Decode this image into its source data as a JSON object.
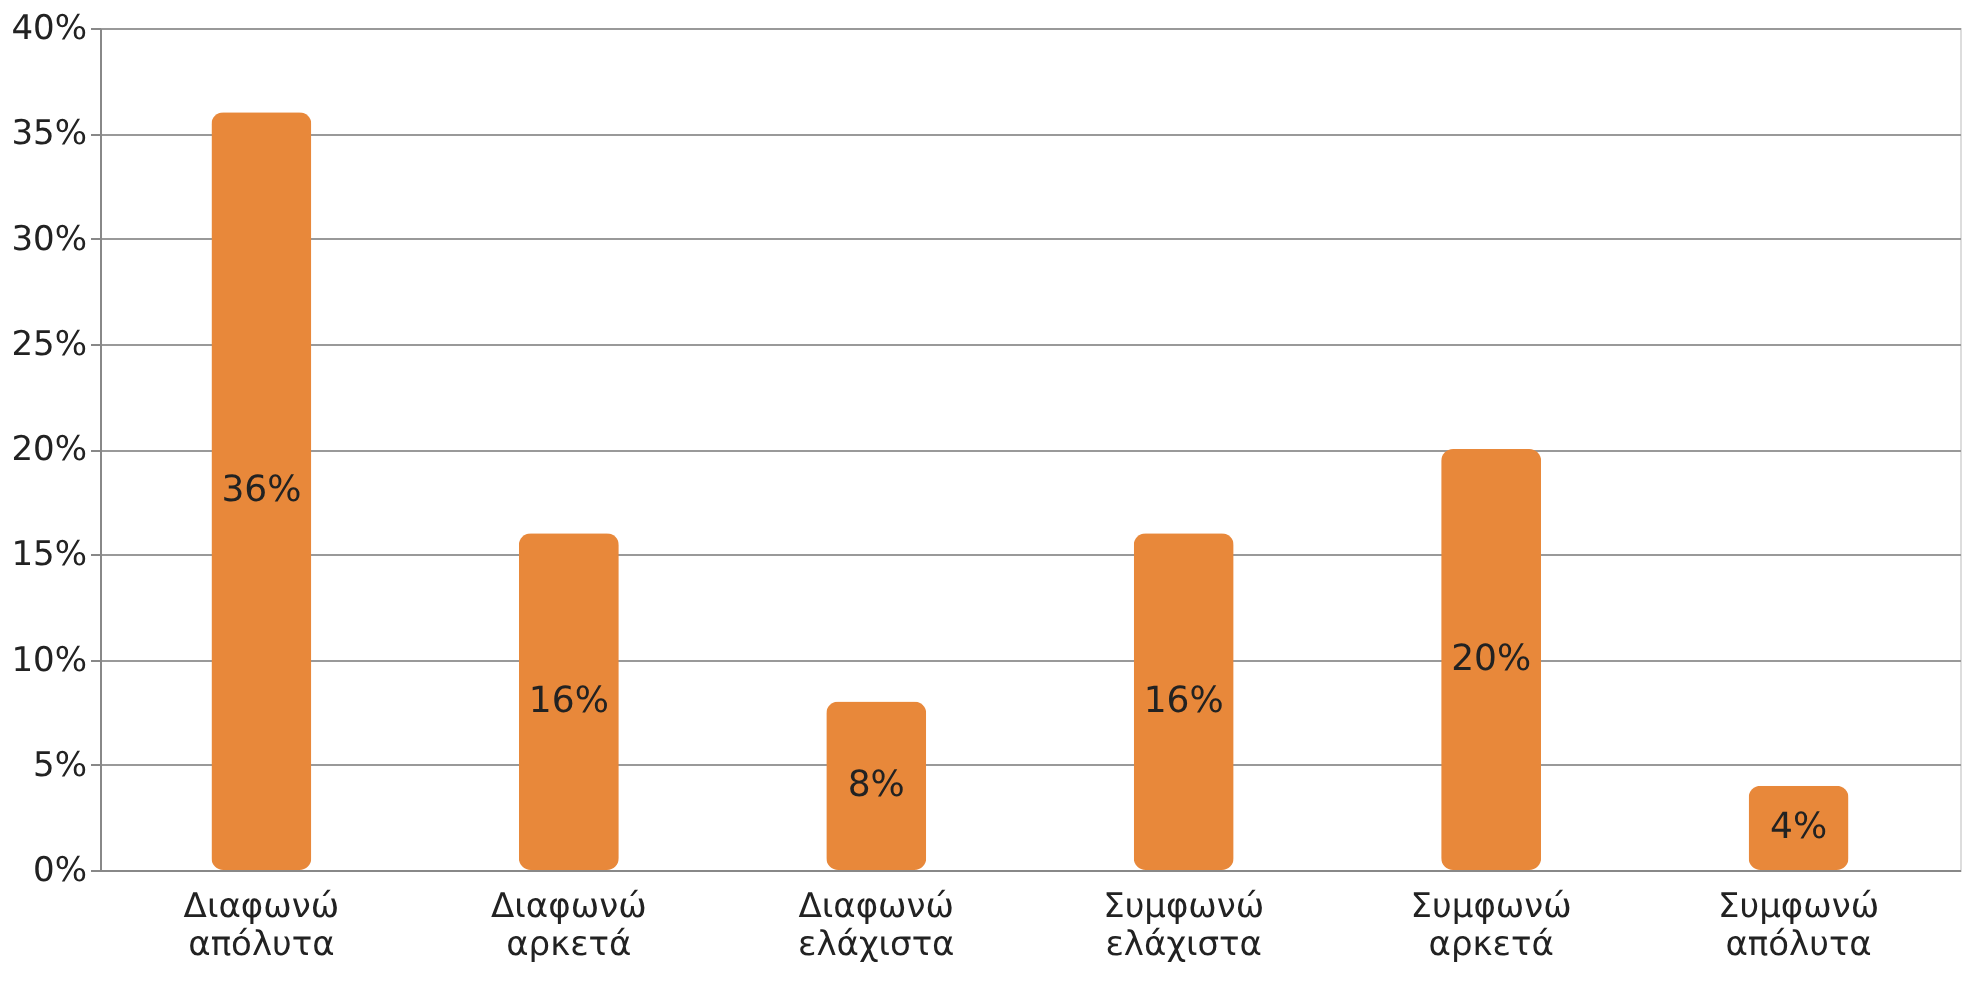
{
  "chart_data": {
    "type": "bar",
    "categories": [
      "Διαφωνώ απόλυτα",
      "Διαφωνώ αρκετά",
      "Διαφωνώ ελάχιστα",
      "Συμφωνώ ελάχιστα",
      "Συμφωνώ αρκετά",
      "Συμφωνώ απόλυτα"
    ],
    "values": [
      36,
      16,
      8,
      16,
      20,
      4
    ],
    "value_labels": [
      "36%",
      "16%",
      "8%",
      "16%",
      "20%",
      "4%"
    ],
    "color": "#e8883a",
    "ylim": [
      0,
      40
    ],
    "yticks": [
      {
        "value": 0,
        "label": "0%"
      },
      {
        "value": 5,
        "label": "5%"
      },
      {
        "value": 10,
        "label": "10%"
      },
      {
        "value": 15,
        "label": "15%"
      },
      {
        "value": 20,
        "label": "20%"
      },
      {
        "value": 25,
        "label": "25%"
      },
      {
        "value": 30,
        "label": "30%"
      },
      {
        "value": 35,
        "label": "35%"
      },
      {
        "value": 40,
        "label": "40%"
      }
    ],
    "grid": "y"
  }
}
